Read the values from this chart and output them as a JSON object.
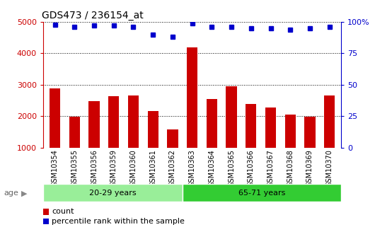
{
  "title": "GDS473 / 236154_at",
  "categories": [
    "GSM10354",
    "GSM10355",
    "GSM10356",
    "GSM10359",
    "GSM10360",
    "GSM10361",
    "GSM10362",
    "GSM10363",
    "GSM10364",
    "GSM10365",
    "GSM10366",
    "GSM10367",
    "GSM10368",
    "GSM10369",
    "GSM10370"
  ],
  "counts": [
    2880,
    1980,
    2490,
    2630,
    2670,
    2160,
    1580,
    4200,
    2550,
    2960,
    2380,
    2280,
    2050,
    1990,
    2650
  ],
  "percentiles": [
    98,
    96,
    97,
    97,
    96,
    90,
    88,
    99,
    96,
    96,
    95,
    95,
    94,
    95,
    96
  ],
  "bar_color": "#cc0000",
  "dot_color": "#0000cc",
  "group1_label": "20-29 years",
  "group2_label": "65-71 years",
  "group1_count": 7,
  "group2_count": 8,
  "group1_color": "#99ee99",
  "group2_color": "#33cc33",
  "ylim": [
    1000,
    5000
  ],
  "yticks": [
    1000,
    2000,
    3000,
    4000,
    5000
  ],
  "y2ticks": [
    0,
    25,
    50,
    75,
    100
  ],
  "y2ticklabels": [
    "0",
    "25",
    "50",
    "75",
    "100%"
  ],
  "y2lim": [
    0,
    100
  ],
  "tick_color_left": "#cc0000",
  "tick_color_right": "#0000cc",
  "legend_count_label": "count",
  "legend_pct_label": "percentile rank within the sample",
  "age_label": "age",
  "plot_bg_color": "#ffffff",
  "xtick_bg_color": "#cccccc",
  "grid_color": "#000000"
}
